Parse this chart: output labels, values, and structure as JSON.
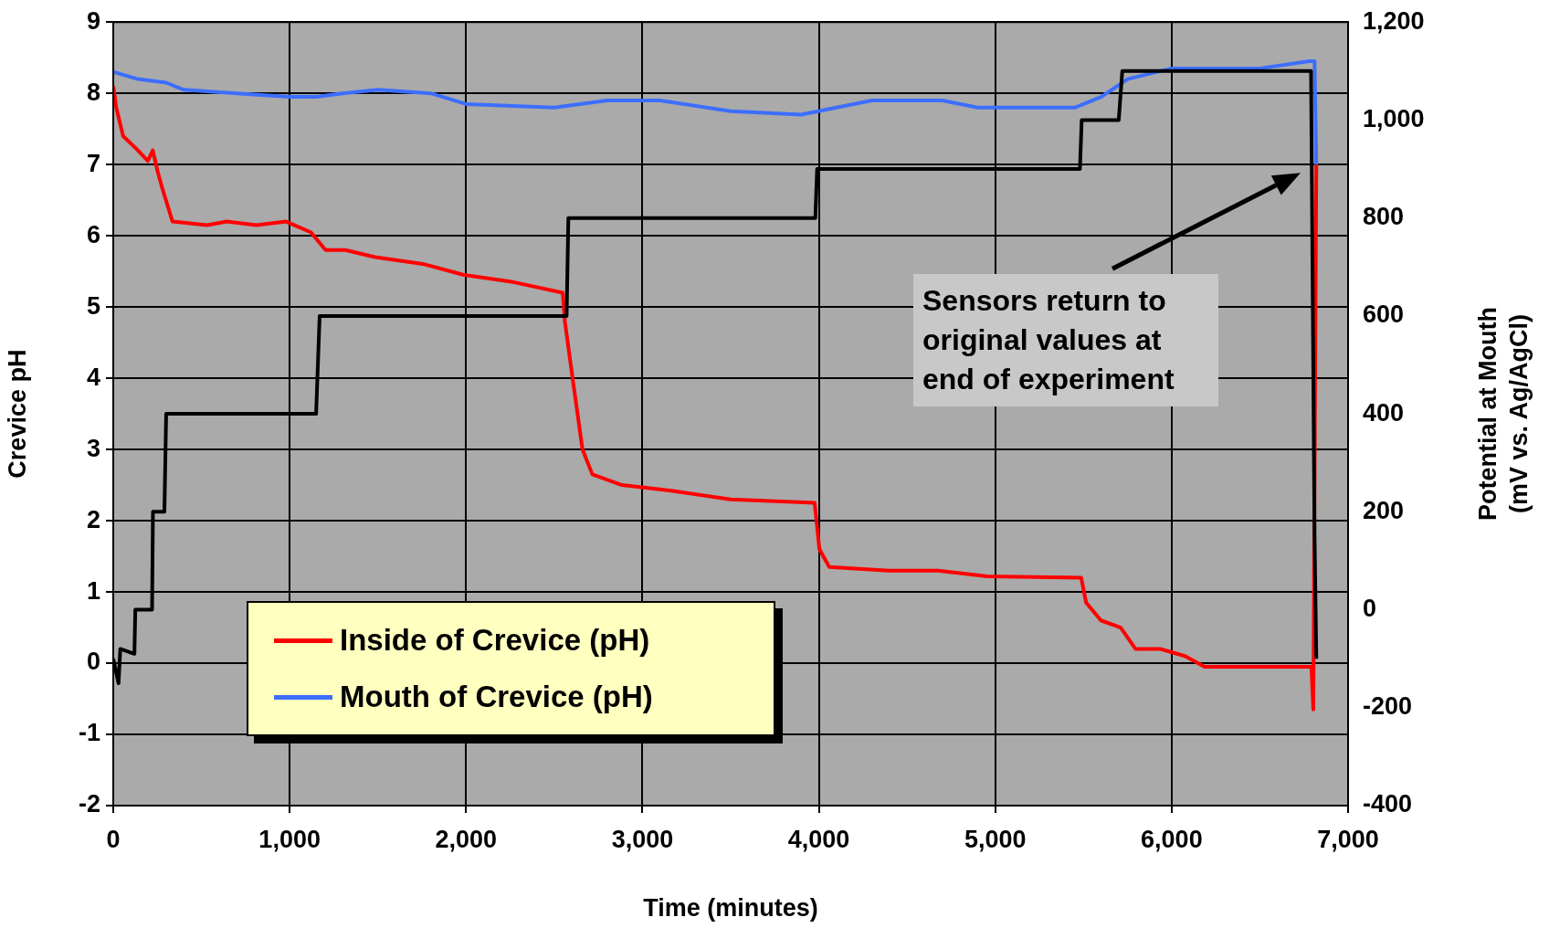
{
  "chart_data": {
    "type": "line",
    "xlabel": "Time (minutes)",
    "ylabel": "Crevice pH",
    "y2label": "Potential at Mouth (mV vs. Ag/AgCl)",
    "xlim": [
      0,
      7000
    ],
    "xticks": [
      0,
      {
        "value": 1000,
        "label": "1,000"
      },
      {
        "value": 2000,
        "label": "2,000"
      },
      {
        "value": 3000,
        "label": "3,000"
      },
      {
        "value": 4000,
        "label": "4,000"
      },
      {
        "value": 5000,
        "label": "5,000"
      },
      {
        "value": 6000,
        "label": "6,000"
      },
      {
        "value": 7000,
        "label": "7,000"
      }
    ],
    "ylim": [
      -2,
      9
    ],
    "yticks": [
      -2,
      -1,
      0,
      1,
      2,
      3,
      4,
      5,
      6,
      7,
      8,
      9
    ],
    "y2lim": [
      -400,
      1200
    ],
    "y2ticks": [
      -400,
      -200,
      0,
      200,
      400,
      600,
      800,
      {
        "value": 1000,
        "label": "1,000"
      },
      {
        "value": 1200,
        "label": "1,200"
      }
    ],
    "grid": true,
    "legend": "bottom left",
    "marker": "none",
    "line_style": "solid",
    "annotations": [
      "Sensors return to original values at end of experiment"
    ],
    "series": [
      {
        "name": "Inside of Crevice (pH)",
        "color": "#ff0000",
        "x": [
          0,
          17,
          56,
          140,
          196,
          224,
          252,
          280,
          336,
          532,
          644,
          812,
          980,
          1120,
          1204,
          1316,
          1484,
          1764,
          1988,
          2268,
          2548,
          2560,
          2604,
          2660,
          2716,
          2884,
          3164,
          3500,
          3976,
          4003,
          4059,
          4395,
          4675,
          4955,
          5487,
          5515,
          5599,
          5711,
          5795,
          5935,
          6075,
          6187,
          6411,
          6792,
          6803,
          6820
        ],
        "values": [
          8.1,
          7.8,
          7.4,
          7.2,
          7.05,
          7.2,
          6.9,
          6.65,
          6.2,
          6.15,
          6.2,
          6.15,
          6.2,
          6.05,
          5.8,
          5.8,
          5.7,
          5.6,
          5.45,
          5.35,
          5.2,
          4.8,
          4.0,
          3.0,
          2.65,
          2.5,
          2.42,
          2.3,
          2.25,
          1.6,
          1.35,
          1.3,
          1.3,
          1.22,
          1.2,
          0.85,
          0.6,
          0.5,
          0.2,
          0.2,
          0.1,
          -0.05,
          -0.05,
          -0.05,
          -0.65,
          7.0
        ]
      },
      {
        "name": "Mouth of Crevice (pH)",
        "color": "#3c6eff",
        "x": [
          0,
          140,
          300,
          400,
          700,
          1000,
          1150,
          1300,
          1500,
          1800,
          2000,
          2500,
          2800,
          3100,
          3500,
          3900,
          4100,
          4300,
          4700,
          4900,
          5450,
          5600,
          5750,
          6000,
          6500,
          6780,
          6810,
          6820
        ],
        "values": [
          8.3,
          8.2,
          8.15,
          8.05,
          8.0,
          7.95,
          7.95,
          8.0,
          8.05,
          8.0,
          7.85,
          7.8,
          7.9,
          7.9,
          7.75,
          7.7,
          7.8,
          7.9,
          7.9,
          7.8,
          7.8,
          7.95,
          8.2,
          8.35,
          8.35,
          8.45,
          8.45,
          7.0
        ]
      },
      {
        "color": "#000000",
        "axis": "y2",
        "x": [
          0,
          30,
          40,
          120,
          125,
          220,
          225,
          290,
          300,
          1150,
          1170,
          2570,
          2580,
          3980,
          3990,
          5480,
          5490,
          5700,
          5720,
          6790,
          6810,
          6820
        ],
        "values": [
          -100,
          -150,
          -80,
          -90,
          0,
          0,
          200,
          200,
          400,
          400,
          600,
          600,
          800,
          800,
          900,
          900,
          1000,
          1000,
          1100,
          1100,
          150,
          -100
        ]
      }
    ]
  }
}
